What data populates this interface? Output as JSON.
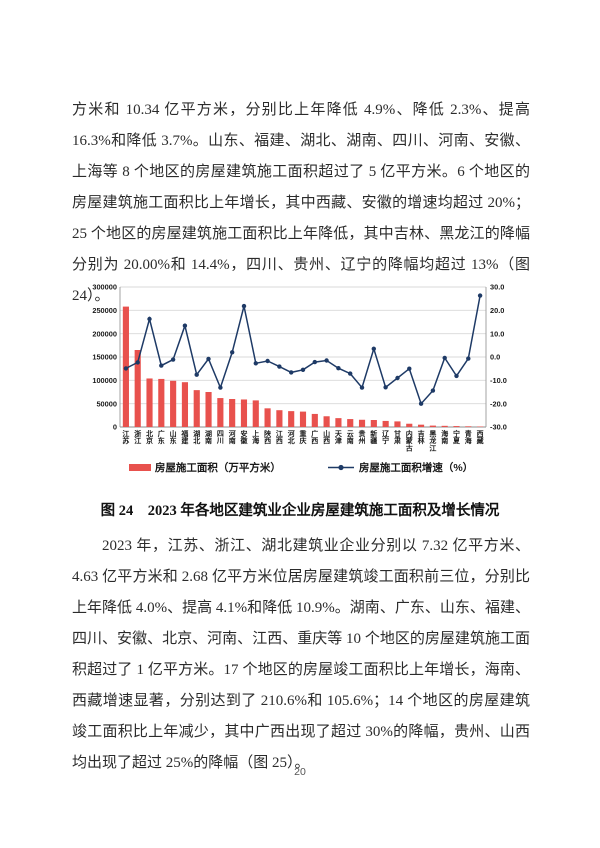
{
  "page_number": "20",
  "paragraphs": {
    "p1": "方米和 10.34 亿平方米，分别比上年降低 4.9%、降低 2.3%、提高 16.3%和降低 3.7%。山东、福建、湖北、湖南、四川、河南、安徽、上海等 8 个地区的房屋建筑施工面积超过了 5 亿平方米。6 个地区的房屋建筑施工面积比上年增长，其中西藏、安徽的增速均超过 20%；25 个地区的房屋建筑施工面积比上年降低，其中吉林、黑龙江的降幅分别为 20.00%和 14.4%，四川、贵州、辽宁的降幅均超过 13%（图 24）。",
    "p2": "2023 年，江苏、浙江、湖北建筑业企业分别以 7.32 亿平方米、4.63 亿平方米和 2.68 亿平方米位居房屋建筑竣工面积前三位，分别比上年降低 4.0%、提高 4.1%和降低 10.9%。湖南、广东、山东、福建、四川、安徽、北京、河南、江西、重庆等 10 个地区的房屋建筑施工面积超过了 1 亿平方米。17 个地区的房屋竣工面积比上年增长，海南、西藏增速显著，分别达到了 210.6%和 105.6%；14 个地区的房屋建筑竣工面积比上年减少，其中广西出现了超过 30%的降幅，贵州、山西均出现了超过 25%的降幅（图 25）。"
  },
  "caption": "图 24　2023 年各地区建筑业企业房屋建筑施工面积及增长情况",
  "chart_data": {
    "type": "bar",
    "combo": "bar+line",
    "title": "",
    "xlabel": "",
    "ylabel_left": "房屋施工面积（万平方米）",
    "ylabel_right": "房屋施工面积增速（%）",
    "grid": true,
    "legend_position": "bottom",
    "categories": [
      "江苏",
      "浙江",
      "北京",
      "广东",
      "山东",
      "福建",
      "湖北",
      "湖南",
      "四川",
      "河南",
      "安徽",
      "上海",
      "陕西",
      "江西",
      "河北",
      "重庆",
      "广西",
      "山西",
      "天津",
      "云南",
      "贵州",
      "新疆",
      "辽宁",
      "甘肃",
      "内蒙古",
      "吉林",
      "黑龙江",
      "海南",
      "宁夏",
      "青海",
      "西藏"
    ],
    "series": [
      {
        "name": "房屋施工面积（万平方米）",
        "type": "bar",
        "axis": "left",
        "color": "#e8514d",
        "values": [
          258000,
          165000,
          104000,
          103000,
          99000,
          96000,
          79000,
          75000,
          62000,
          60000,
          59000,
          57000,
          40000,
          36000,
          34000,
          33000,
          28000,
          23000,
          19000,
          17000,
          15500,
          15000,
          13000,
          12000,
          7000,
          5000,
          3000,
          2500,
          2000,
          1500,
          1000
        ]
      },
      {
        "name": "房屋施工面积增速（%）",
        "type": "line",
        "axis": "right",
        "color": "#1e3a66",
        "values": [
          -4.9,
          -2.3,
          16.3,
          -3.7,
          -1.1,
          13.4,
          -7.6,
          -0.8,
          -13.1,
          2.0,
          21.8,
          -2.7,
          -1.7,
          -4.1,
          -6.6,
          -5.5,
          -2.2,
          -1.5,
          -4.8,
          -7.1,
          -13.1,
          3.5,
          -13.0,
          -9.0,
          -5.0,
          -20.0,
          -14.4,
          -0.4,
          -8.1,
          -0.7,
          26.3
        ]
      }
    ],
    "left_axis": {
      "min": 0,
      "max": 300000,
      "step": 50000,
      "decimals": 0
    },
    "right_axis": {
      "min": -30,
      "max": 30,
      "step": 10,
      "decimals": 1
    },
    "colors": {
      "bar": "#e8514d",
      "line": "#1e3a66",
      "grid": "#d9d9d9",
      "axis": "#999999"
    }
  }
}
